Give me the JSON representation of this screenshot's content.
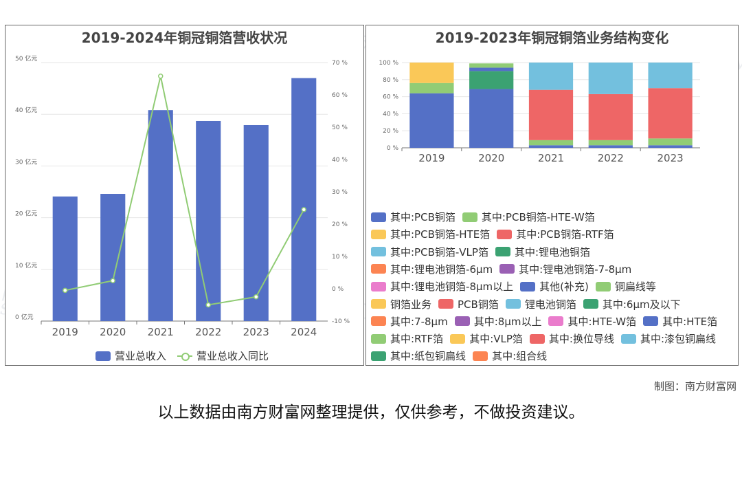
{
  "watermark": {
    "cn": "南方财富网",
    "en": "southmoney.com"
  },
  "credit": "制图：南方财富网",
  "disclaimer": "以上数据由南方财富网整理提供，仅供参考，不做投资建议。",
  "chart_data": [
    {
      "type": "bar",
      "title": "2019-2024年铜冠铜箔营收状况",
      "categories": [
        "2019",
        "2020",
        "2021",
        "2022",
        "2023",
        "2024"
      ],
      "series": [
        {
          "name": "营业总收入",
          "type": "bar",
          "axis": "left",
          "color": "#5470c6",
          "values": [
            24.1,
            24.6,
            40.8,
            38.7,
            37.9,
            47.0
          ]
        },
        {
          "name": "营业总收入同比",
          "type": "line",
          "axis": "right",
          "color": "#91cc75",
          "values": [
            -0.5,
            2.5,
            65.8,
            -5.0,
            -2.5,
            24.5
          ]
        }
      ],
      "y_left": {
        "min": 0,
        "max": 50,
        "step": 10,
        "unit": "亿元",
        "ticks": [
          "0 亿元",
          "10 亿元",
          "20 亿元",
          "30 亿元",
          "40 亿元",
          "50 亿元"
        ]
      },
      "y_right": {
        "min": -10,
        "max": 70,
        "step": 10,
        "unit": "%",
        "ticks": [
          "-10 %",
          "0 %",
          "10 %",
          "20 %",
          "30 %",
          "40 %",
          "50 %",
          "60 %",
          "70 %"
        ]
      },
      "grid": true,
      "legend": "bottom"
    },
    {
      "type": "bar",
      "stacked": true,
      "title": "2019-2023年铜冠铜箔业务结构变化",
      "categories": [
        "2019",
        "2020",
        "2021",
        "2022",
        "2023"
      ],
      "y": {
        "min": 0,
        "max": 100,
        "ticks": [
          "0 %",
          "20 %",
          "40 %",
          "60 %",
          "80 %",
          "100 %"
        ]
      },
      "series": [
        {
          "name": "其中:PCB铜箔",
          "color": "#5470c6",
          "values": [
            64,
            69,
            0,
            0,
            0
          ]
        },
        {
          "name": "其中:PCB铜箔-HTE-W箔",
          "color": "#91cc75",
          "values": [
            0,
            0,
            0,
            0,
            0
          ]
        },
        {
          "name": "其中:PCB铜箔-HTE箔",
          "color": "#fac858",
          "values": [
            0,
            0,
            0,
            0,
            0
          ]
        },
        {
          "name": "其中:PCB铜箔-RTF箔",
          "color": "#ee6666",
          "values": [
            0,
            0,
            0,
            0,
            0
          ]
        },
        {
          "name": "其中:PCB铜箔-VLP箔",
          "color": "#73c0de",
          "values": [
            0,
            0,
            0,
            0,
            0
          ]
        },
        {
          "name": "其中:锂电池铜箔",
          "color": "#3ba272",
          "values": [
            0,
            21,
            0,
            0,
            0
          ]
        },
        {
          "name": "其中:锂电池铜箔-6μm",
          "color": "#fc8452",
          "values": [
            0,
            0,
            0,
            0,
            0
          ]
        },
        {
          "name": "其中:锂电池铜箔-7-8μm",
          "color": "#9a60b4",
          "values": [
            0,
            0,
            0,
            0,
            0
          ]
        },
        {
          "name": "其中:锂电池铜箔-8μm以上",
          "color": "#ea7ccc",
          "values": [
            0,
            0,
            0,
            0,
            0
          ]
        },
        {
          "name": "其他(补充)",
          "color": "#5470c6",
          "values": [
            0,
            4,
            3,
            3,
            3
          ]
        },
        {
          "name": "铜扁线等",
          "color": "#91cc75",
          "values": [
            12,
            5,
            6,
            6,
            8
          ]
        },
        {
          "name": "铜箔业务",
          "color": "#fac858",
          "values": [
            24,
            0,
            0,
            0,
            0
          ]
        },
        {
          "name": "PCB铜箔",
          "color": "#ee6666",
          "values": [
            0,
            0,
            59,
            54,
            59
          ]
        },
        {
          "name": "锂电池铜箔",
          "color": "#73c0de",
          "values": [
            0,
            0,
            32,
            37,
            30
          ]
        },
        {
          "name": "其中:6μm及以下",
          "color": "#3ba272",
          "values": [
            0,
            0,
            0,
            0,
            0
          ]
        },
        {
          "name": "其中:7-8μm",
          "color": "#fc8452",
          "values": [
            0,
            0,
            0,
            0,
            0
          ]
        },
        {
          "name": "其中:8μm以上",
          "color": "#9a60b4",
          "values": [
            0,
            0,
            0,
            0,
            0
          ]
        },
        {
          "name": "其中:HTE-W箔",
          "color": "#ea7ccc",
          "values": [
            0,
            0,
            0,
            0,
            0
          ]
        },
        {
          "name": "其中:HTE箔",
          "color": "#5470c6",
          "values": [
            0,
            0,
            0,
            0,
            0
          ]
        },
        {
          "name": "其中:RTF箔",
          "color": "#91cc75",
          "values": [
            0,
            0,
            0,
            0,
            0
          ]
        },
        {
          "name": "其中:VLP箔",
          "color": "#fac858",
          "values": [
            0,
            0,
            0,
            0,
            0
          ]
        },
        {
          "name": "其中:换位导线",
          "color": "#ee6666",
          "values": [
            0,
            0,
            0,
            0,
            0
          ]
        },
        {
          "name": "其中:漆包铜扁线",
          "color": "#73c0de",
          "values": [
            0,
            0,
            0,
            0,
            0
          ]
        },
        {
          "name": "其中:纸包铜扁线",
          "color": "#3ba272",
          "values": [
            0,
            0,
            0,
            0,
            0
          ]
        },
        {
          "name": "其中:组合线",
          "color": "#fc8452",
          "values": [
            0,
            0,
            0,
            0,
            0
          ]
        }
      ],
      "legend": "bottom",
      "grid": true
    }
  ]
}
